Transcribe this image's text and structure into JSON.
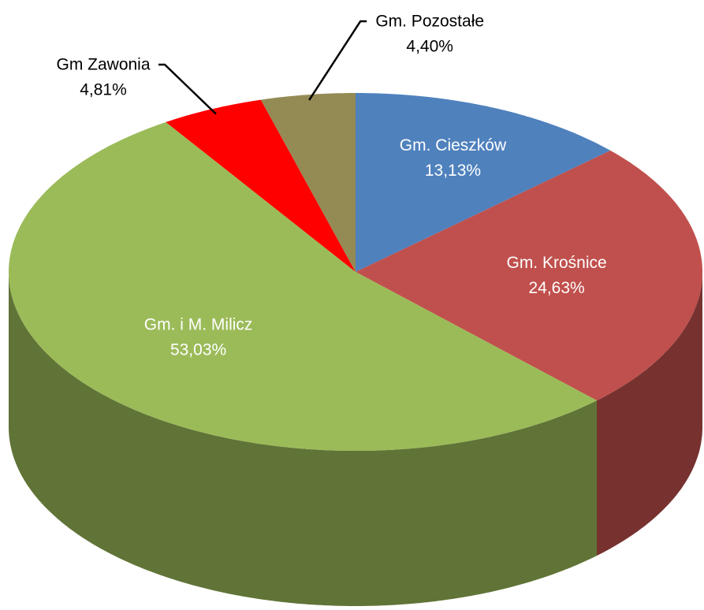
{
  "chart_data": {
    "type": "pie",
    "categories": [
      "Gm. Cieszków",
      "Gm. Krośnice",
      "Gm. i M. Milicz",
      "Gm Zawonia",
      "Gm. Pozostałe"
    ],
    "values": [
      13.13,
      24.63,
      53.03,
      4.81,
      4.4
    ],
    "value_labels": [
      "13,13%",
      "24,63%",
      "53,03%",
      "4,81%",
      "4,40%"
    ],
    "colors": [
      "#4f81bd",
      "#c0504d",
      "#9bbb59",
      "#ff0000",
      "#948a54"
    ]
  }
}
